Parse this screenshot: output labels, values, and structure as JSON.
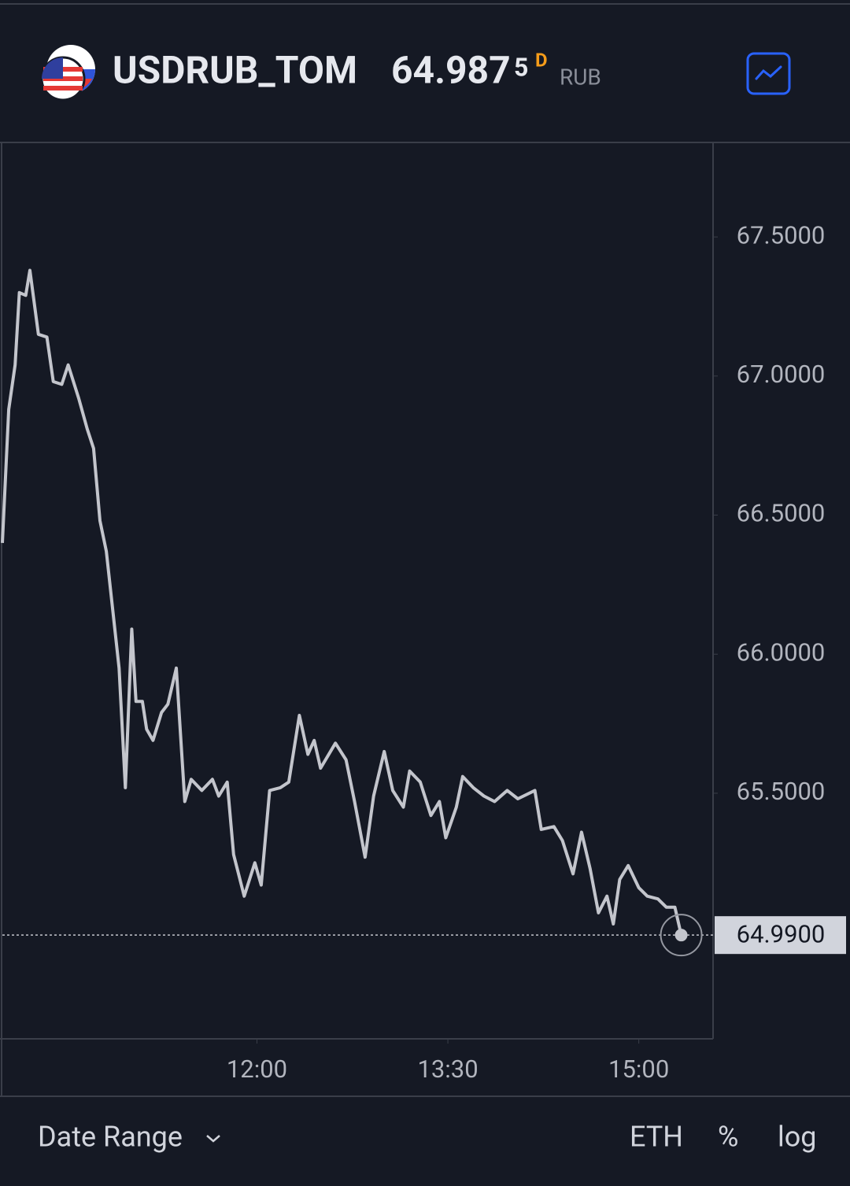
{
  "header": {
    "symbol": "USDRUB_TOM",
    "price": "64.987",
    "price_fraction": "5",
    "badge": "D",
    "currency": "RUB"
  },
  "chart_data": {
    "type": "line",
    "color": "#c3c5cc",
    "x": [
      "10:00",
      "10:03",
      "10:06",
      "10:08",
      "10:11",
      "10:13",
      "10:17",
      "10:21",
      "10:24",
      "10:28",
      "10:31",
      "10:36",
      "10:40",
      "10:43",
      "10:46",
      "10:49",
      "10:53",
      "10:55",
      "10:58",
      "11:01",
      "11:03",
      "11:06",
      "11:08",
      "11:11",
      "11:15",
      "11:18",
      "11:22",
      "11:26",
      "11:29",
      "11:34",
      "11:39",
      "11:42",
      "11:46",
      "11:49",
      "11:54",
      "11:59",
      "12:02",
      "12:06",
      "12:11",
      "12:15",
      "12:20",
      "12:24",
      "12:27",
      "12:30",
      "12:37",
      "12:42",
      "12:46",
      "12:51",
      "12:55",
      "13:00",
      "13:04",
      "13:09",
      "13:12",
      "13:17",
      "13:22",
      "13:26",
      "13:29",
      "13:34",
      "13:37",
      "13:42",
      "13:47",
      "13:52",
      "13:58",
      "14:03",
      "14:11",
      "14:14",
      "14:20",
      "14:24",
      "14:29",
      "14:33",
      "14:37",
      "14:41",
      "14:45",
      "14:48",
      "14:51",
      "14:55",
      "15:00",
      "15:04",
      "15:09",
      "15:13",
      "15:17",
      "15:20"
    ],
    "values": [
      66.4,
      66.88,
      67.04,
      67.3,
      67.29,
      67.38,
      67.15,
      67.14,
      66.98,
      66.97,
      67.04,
      66.92,
      66.81,
      66.74,
      66.48,
      66.37,
      66.09,
      65.95,
      65.52,
      66.09,
      65.83,
      65.83,
      65.73,
      65.69,
      65.79,
      65.82,
      65.95,
      65.47,
      65.55,
      65.51,
      65.55,
      65.49,
      65.54,
      65.28,
      65.13,
      65.25,
      65.17,
      65.51,
      65.52,
      65.54,
      65.78,
      65.64,
      65.69,
      65.59,
      65.68,
      65.62,
      65.47,
      65.27,
      65.49,
      65.65,
      65.51,
      65.45,
      65.58,
      65.54,
      65.42,
      65.47,
      65.34,
      65.45,
      65.56,
      65.52,
      65.49,
      65.47,
      65.51,
      65.48,
      65.51,
      65.37,
      65.38,
      65.33,
      65.21,
      65.36,
      65.23,
      65.07,
      65.13,
      65.03,
      65.19,
      65.24,
      65.16,
      65.13,
      65.12,
      65.09,
      65.09,
      64.99
    ],
    "xlim": [
      "10:00",
      "15:35"
    ],
    "xticks": [
      "12:00",
      "13:30",
      "15:00"
    ],
    "ylim": [
      64.617,
      67.837
    ],
    "yticks": [
      {
        "value": 65.5,
        "label": "65.5000"
      },
      {
        "value": 66,
        "label": "66.0000"
      },
      {
        "value": 66.5,
        "label": "66.5000"
      },
      {
        "value": 67,
        "label": "67.0000"
      },
      {
        "value": 67.5,
        "label": "67.5000"
      }
    ],
    "last_value": {
      "value": 64.99,
      "label": "64.9900"
    }
  },
  "footer": {
    "date_range": "Date Range",
    "eth": "ETH",
    "percent": "%",
    "log": "log"
  }
}
